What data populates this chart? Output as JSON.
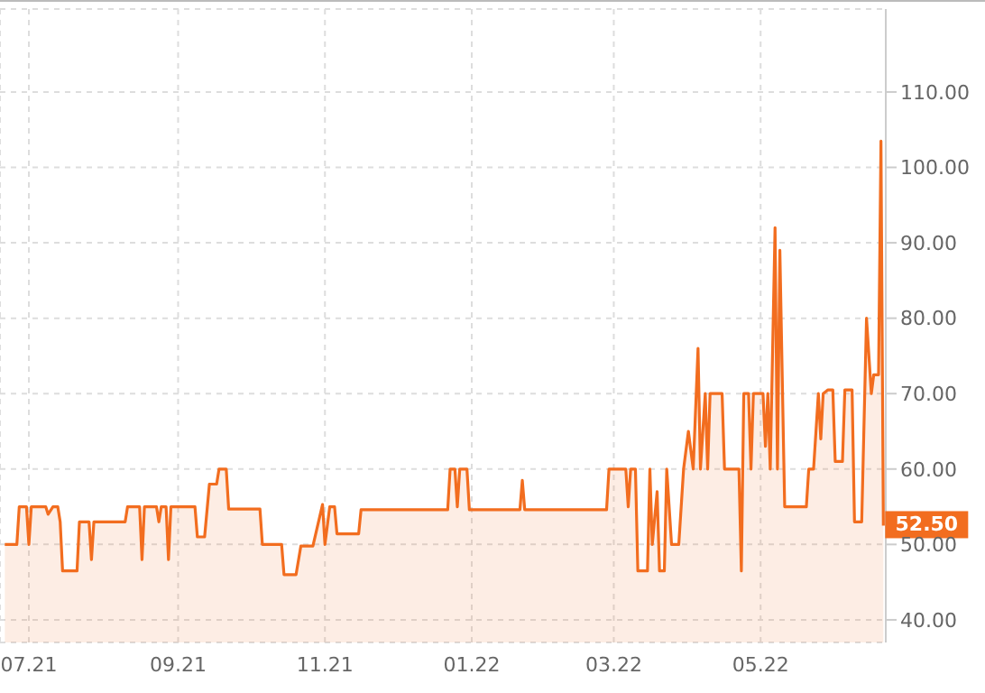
{
  "chart_data": {
    "type": "area",
    "x": [
      "2021-06-21",
      "2021-06-26",
      "2021-06-27",
      "2021-06-30",
      "2021-07-01",
      "2021-07-02",
      "2021-07-08",
      "2021-07-09",
      "2021-07-11",
      "2021-07-13",
      "2021-07-14",
      "2021-07-15",
      "2021-07-21",
      "2021-07-22",
      "2021-07-26",
      "2021-07-27",
      "2021-07-28",
      "2021-08-10",
      "2021-08-11",
      "2021-08-16",
      "2021-08-17",
      "2021-08-18",
      "2021-08-23",
      "2021-08-24",
      "2021-08-25",
      "2021-08-27",
      "2021-08-28",
      "2021-08-29",
      "2021-09-08",
      "2021-09-09",
      "2021-09-12",
      "2021-09-14",
      "2021-09-17",
      "2021-09-18",
      "2021-09-21",
      "2021-09-22",
      "2021-10-05",
      "2021-10-06",
      "2021-10-14",
      "2021-10-15",
      "2021-10-20",
      "2021-10-22",
      "2021-10-27",
      "2021-10-31",
      "2021-11-01",
      "2021-11-03",
      "2021-11-05",
      "2021-11-06",
      "2021-11-15",
      "2021-11-16",
      "2021-12-22",
      "2021-12-23",
      "2021-12-25",
      "2021-12-26",
      "2021-12-27",
      "2021-12-30",
      "2021-12-31",
      "2022-01-21",
      "2022-01-22",
      "2022-01-23",
      "2022-02-26",
      "2022-02-27",
      "2022-03-06",
      "2022-03-07",
      "2022-03-08",
      "2022-03-10",
      "2022-03-11",
      "2022-03-15",
      "2022-03-16",
      "2022-03-17",
      "2022-03-19",
      "2022-03-20",
      "2022-03-22",
      "2022-03-23",
      "2022-03-25",
      "2022-03-28",
      "2022-03-30",
      "2022-04-01",
      "2022-04-03",
      "2022-04-05",
      "2022-04-06",
      "2022-04-08",
      "2022-04-09",
      "2022-04-10",
      "2022-04-15",
      "2022-04-16",
      "2022-04-22",
      "2022-04-23",
      "2022-04-24",
      "2022-04-26",
      "2022-04-27",
      "2022-04-28",
      "2022-05-02",
      "2022-05-03",
      "2022-05-04",
      "2022-05-05",
      "2022-05-07",
      "2022-05-08",
      "2022-05-09",
      "2022-05-11",
      "2022-05-20",
      "2022-05-21",
      "2022-05-23",
      "2022-05-25",
      "2022-05-26",
      "2022-05-27",
      "2022-05-29",
      "2022-05-31",
      "2022-06-01",
      "2022-06-04",
      "2022-06-05",
      "2022-06-08",
      "2022-06-09",
      "2022-06-12",
      "2022-06-14",
      "2022-06-16",
      "2022-06-17",
      "2022-06-19",
      "2022-06-20",
      "2022-06-21"
    ],
    "series": [
      {
        "color": "#f26d1f",
        "values": [
          50,
          50,
          55,
          55,
          50,
          55,
          55,
          54,
          55,
          55,
          53,
          46.5,
          46.5,
          53,
          53,
          48,
          53,
          53,
          55,
          55,
          48,
          55,
          55,
          53,
          55,
          55,
          48,
          55,
          55,
          51,
          51,
          58,
          58,
          60,
          60,
          54.7,
          54.7,
          50,
          50,
          46,
          46,
          49.8,
          49.8,
          55.3,
          50,
          55,
          55,
          51.4,
          51.4,
          54.6,
          54.6,
          60,
          60,
          55,
          60,
          60,
          54.6,
          54.6,
          58.5,
          54.6,
          54.6,
          60,
          60,
          55,
          60,
          60,
          46.5,
          46.5,
          60,
          50,
          57,
          46.5,
          46.5,
          60,
          50,
          50,
          60,
          65,
          60,
          76,
          60,
          70,
          60,
          70,
          70,
          60,
          60,
          46.5,
          70,
          70,
          60,
          70,
          70,
          63,
          70,
          60,
          92,
          60,
          89,
          55,
          55,
          60,
          60,
          70,
          64,
          70,
          70.5,
          70.5,
          61,
          61,
          70.5,
          70.5,
          53,
          53,
          80,
          70,
          72.5,
          72.5,
          103.5,
          52.5
        ]
      }
    ],
    "xlim": [
      "2021-06-19",
      "2022-06-22"
    ],
    "xticks": [
      {
        "value": "2021-07-01",
        "label": "07.21"
      },
      {
        "value": "2021-09-01",
        "label": "09.21"
      },
      {
        "value": "2021-11-01",
        "label": "11.21"
      },
      {
        "value": "2022-01-01",
        "label": "01.22"
      },
      {
        "value": "2022-03-01",
        "label": "03.22"
      },
      {
        "value": "2022-05-01",
        "label": "05.22"
      }
    ],
    "ylim": [
      37,
      121
    ],
    "yticks": [
      {
        "value": 40,
        "label": "40.00"
      },
      {
        "value": 50,
        "label": "50.00"
      },
      {
        "value": 60,
        "label": "60.00"
      },
      {
        "value": 70,
        "label": "70.00"
      },
      {
        "value": 80,
        "label": "80.00"
      },
      {
        "value": 90,
        "label": "90.00"
      },
      {
        "value": 100,
        "label": "100.00"
      },
      {
        "value": 110,
        "label": "110.00"
      }
    ],
    "annotations": [
      {
        "text": "52.50",
        "x": "2022-06-21",
        "y": 52.5
      }
    ],
    "grid": true,
    "legend": false
  }
}
